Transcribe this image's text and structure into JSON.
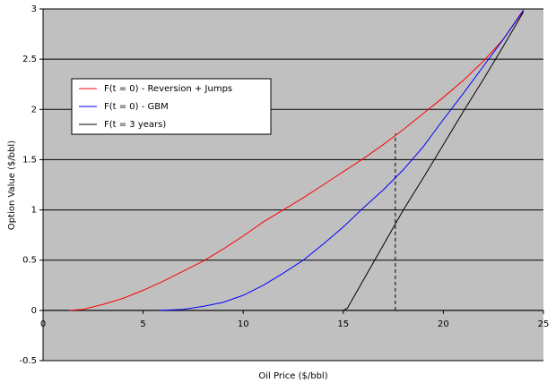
{
  "chart_data": {
    "type": "line",
    "x_label": "Oil Price ($/bbl)",
    "y_label": "Option Value ($/bbl)",
    "xlim": [
      0,
      25
    ],
    "xticks": [
      0,
      5,
      10,
      15,
      20,
      25
    ],
    "ylim": [
      -0.5,
      3
    ],
    "yticks": [
      -0.5,
      0,
      0.5,
      1,
      1.5,
      2,
      2.5,
      3
    ],
    "grid": true,
    "legend": "upper left",
    "series": [
      {
        "name": "F(t = 0) - Reversion + Jumps",
        "color": "#ff0000",
        "x": [
          1.3,
          2,
          3,
          4,
          5,
          6,
          7,
          8,
          9,
          10,
          11,
          12,
          13,
          14,
          15,
          16,
          17,
          18,
          19,
          20,
          21,
          22,
          23,
          24
        ],
        "values": [
          0,
          0.01,
          0.06,
          0.12,
          0.2,
          0.29,
          0.39,
          0.49,
          0.61,
          0.74,
          0.88,
          1.0,
          1.12,
          1.25,
          1.38,
          1.51,
          1.65,
          1.8,
          1.96,
          2.12,
          2.29,
          2.48,
          2.7,
          2.98
        ]
      },
      {
        "name": "F(t = 0) - GBM",
        "color": "#0000ff",
        "x": [
          5.8,
          7,
          8,
          9,
          10,
          11,
          12,
          13,
          14,
          15,
          16,
          17,
          18,
          19,
          20,
          21,
          22,
          23,
          24
        ],
        "values": [
          0,
          0.01,
          0.04,
          0.08,
          0.15,
          0.25,
          0.37,
          0.5,
          0.66,
          0.83,
          1.02,
          1.2,
          1.4,
          1.63,
          1.9,
          2.16,
          2.43,
          2.7,
          2.99
        ]
      },
      {
        "name": "F(t = 3 years)",
        "color": "#000000",
        "x": [
          15,
          15.2,
          16,
          17,
          18,
          19,
          20,
          21,
          22,
          23,
          24
        ],
        "values": [
          0,
          0.02,
          0.3,
          0.65,
          1.0,
          1.32,
          1.65,
          1.98,
          2.3,
          2.63,
          2.97
        ]
      }
    ],
    "reference_line": {
      "x": 17.6,
      "y": [
        0,
        1.76
      ]
    }
  }
}
